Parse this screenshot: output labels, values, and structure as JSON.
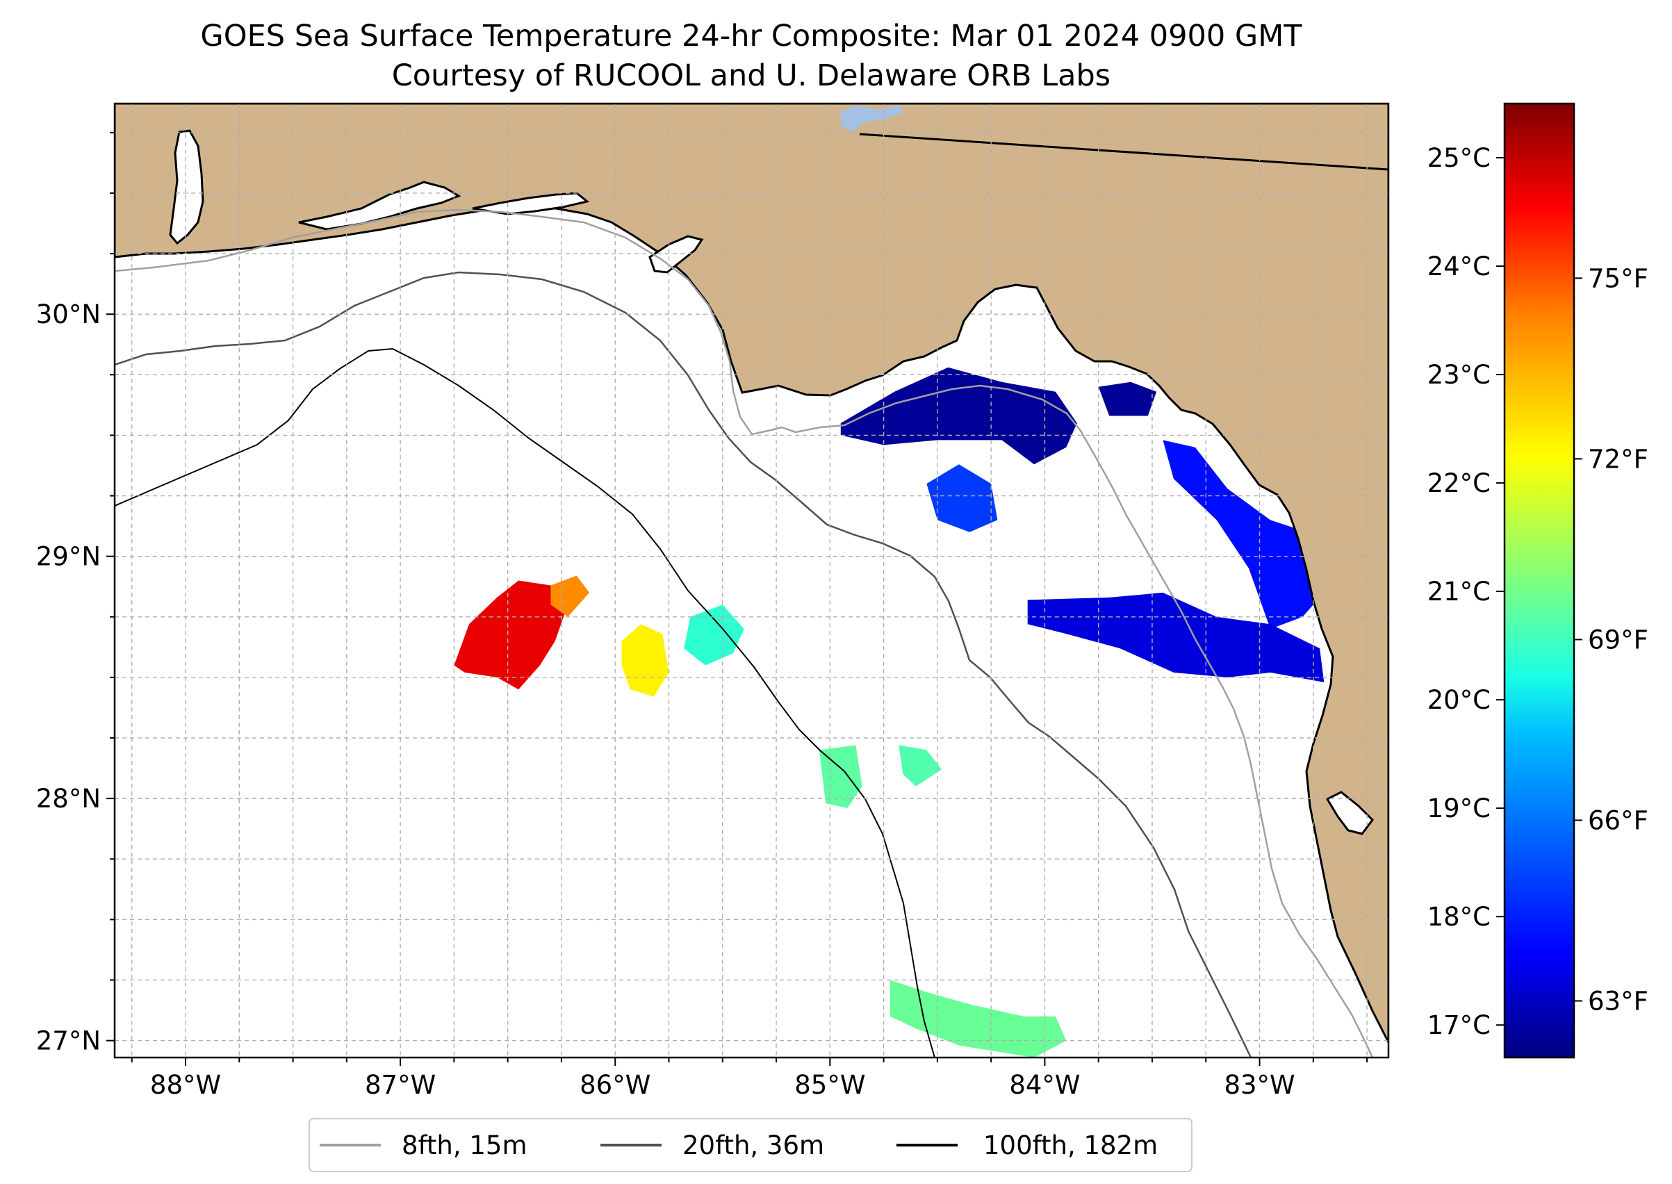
{
  "title": {
    "line1": "GOES Sea Surface Temperature 24-hr Composite: Mar 01 2024 0900 GMT",
    "line2": "Courtesy of RUCOOL and U. Delaware ORB Labs"
  },
  "map": {
    "lon_range": [
      -88.33,
      -82.4
    ],
    "lat_range": [
      26.93,
      30.87
    ],
    "lon_ticks": [
      {
        "value": -88,
        "label": "88°W"
      },
      {
        "value": -87,
        "label": "87°W"
      },
      {
        "value": -86,
        "label": "86°W"
      },
      {
        "value": -85,
        "label": "85°W"
      },
      {
        "value": -84,
        "label": "84°W"
      },
      {
        "value": -83,
        "label": "83°W"
      }
    ],
    "lat_ticks": [
      {
        "value": 27,
        "label": "27°N"
      },
      {
        "value": 28,
        "label": "28°N"
      },
      {
        "value": 29,
        "label": "29°N"
      },
      {
        "value": 30,
        "label": "30°N"
      }
    ],
    "gridlines": true,
    "colors": {
      "land": "#d2b48c",
      "ocean": "#ffffff",
      "lake": "#a4c0e4",
      "grid": "#b0b0b0"
    }
  },
  "colorbar": {
    "colormap": "jet",
    "celsius_range": [
      16.7,
      25.5
    ],
    "celsius_ticks": [
      {
        "value": 17,
        "label": "17°C"
      },
      {
        "value": 18,
        "label": "18°C"
      },
      {
        "value": 19,
        "label": "19°C"
      },
      {
        "value": 20,
        "label": "20°C"
      },
      {
        "value": 21,
        "label": "21°C"
      },
      {
        "value": 22,
        "label": "22°C"
      },
      {
        "value": 23,
        "label": "23°C"
      },
      {
        "value": 24,
        "label": "24°C"
      },
      {
        "value": 25,
        "label": "25°C"
      }
    ],
    "fahrenheit_ticks": [
      {
        "value": 63,
        "label": "63°F"
      },
      {
        "value": 66,
        "label": "66°F"
      },
      {
        "value": 69,
        "label": "69°F"
      },
      {
        "value": 72,
        "label": "72°F"
      },
      {
        "value": 75,
        "label": "75°F"
      }
    ]
  },
  "legend": {
    "placement": "bottom-center",
    "entries": [
      {
        "label": "8fth, 15m",
        "color": "#a0a0a0"
      },
      {
        "label": "20fth, 36m",
        "color": "#505050"
      },
      {
        "label": "100fth, 182m",
        "color": "#000000"
      }
    ]
  },
  "sst_patches": [
    {
      "name": "apalachee-bay-cold",
      "temp_c": 16.9,
      "poly": [
        [
          -84.95,
          29.55
        ],
        [
          -84.7,
          29.68
        ],
        [
          -84.45,
          29.78
        ],
        [
          -84.2,
          29.72
        ],
        [
          -83.95,
          29.68
        ],
        [
          -83.85,
          29.55
        ],
        [
          -83.9,
          29.45
        ],
        [
          -84.05,
          29.38
        ],
        [
          -84.2,
          29.48
        ],
        [
          -84.5,
          29.48
        ],
        [
          -84.75,
          29.46
        ],
        [
          -84.95,
          29.5
        ]
      ]
    },
    {
      "name": "steinhatchee-cold",
      "temp_c": 16.9,
      "poly": [
        [
          -83.75,
          29.7
        ],
        [
          -83.6,
          29.72
        ],
        [
          -83.48,
          29.68
        ],
        [
          -83.52,
          29.58
        ],
        [
          -83.7,
          29.58
        ]
      ]
    },
    {
      "name": "offshore-blue-patch",
      "temp_c": 18.3,
      "poly": [
        [
          -84.55,
          29.3
        ],
        [
          -84.4,
          29.38
        ],
        [
          -84.25,
          29.3
        ],
        [
          -84.22,
          29.15
        ],
        [
          -84.35,
          29.1
        ],
        [
          -84.5,
          29.15
        ]
      ]
    },
    {
      "name": "big-bend-blue-north",
      "temp_c": 17.9,
      "poly": [
        [
          -83.45,
          29.48
        ],
        [
          -83.3,
          29.45
        ],
        [
          -83.15,
          29.28
        ],
        [
          -82.95,
          29.15
        ],
        [
          -82.78,
          29.1
        ],
        [
          -82.7,
          28.85
        ],
        [
          -82.8,
          28.75
        ],
        [
          -82.95,
          28.7
        ],
        [
          -83.05,
          28.95
        ],
        [
          -83.2,
          29.15
        ],
        [
          -83.4,
          29.32
        ]
      ]
    },
    {
      "name": "big-bend-blue-south",
      "temp_c": 17.5,
      "poly": [
        [
          -84.08,
          28.82
        ],
        [
          -83.7,
          28.83
        ],
        [
          -83.45,
          28.85
        ],
        [
          -83.2,
          28.75
        ],
        [
          -82.95,
          28.72
        ],
        [
          -82.72,
          28.62
        ],
        [
          -82.7,
          28.48
        ],
        [
          -82.95,
          28.52
        ],
        [
          -83.15,
          28.5
        ],
        [
          -83.4,
          28.52
        ],
        [
          -83.65,
          28.62
        ],
        [
          -83.9,
          28.68
        ],
        [
          -84.08,
          28.72
        ]
      ]
    },
    {
      "name": "western-warm-patch",
      "temp_c": 24.6,
      "poly": [
        [
          -86.75,
          28.55
        ],
        [
          -86.68,
          28.72
        ],
        [
          -86.55,
          28.83
        ],
        [
          -86.45,
          28.9
        ],
        [
          -86.3,
          28.88
        ],
        [
          -86.22,
          28.8
        ],
        [
          -86.28,
          28.65
        ],
        [
          -86.35,
          28.55
        ],
        [
          -86.45,
          28.45
        ],
        [
          -86.55,
          28.5
        ],
        [
          -86.7,
          28.52
        ]
      ]
    },
    {
      "name": "western-warm-edge",
      "temp_c": 23.2,
      "poly": [
        [
          -86.3,
          28.88
        ],
        [
          -86.18,
          28.92
        ],
        [
          -86.12,
          28.85
        ],
        [
          -86.22,
          28.75
        ],
        [
          -86.3,
          28.8
        ]
      ]
    },
    {
      "name": "central-yellow-patch",
      "temp_c": 22.3,
      "poly": [
        [
          -85.97,
          28.65
        ],
        [
          -85.88,
          28.72
        ],
        [
          -85.78,
          28.68
        ],
        [
          -85.75,
          28.52
        ],
        [
          -85.82,
          28.42
        ],
        [
          -85.93,
          28.45
        ],
        [
          -85.97,
          28.55
        ]
      ]
    },
    {
      "name": "central-cyan-patch",
      "temp_c": 20.4,
      "poly": [
        [
          -85.65,
          28.75
        ],
        [
          -85.5,
          28.8
        ],
        [
          -85.4,
          28.7
        ],
        [
          -85.45,
          28.6
        ],
        [
          -85.58,
          28.55
        ],
        [
          -85.68,
          28.62
        ]
      ]
    },
    {
      "name": "south-green-1",
      "temp_c": 20.8,
      "poly": [
        [
          -85.05,
          28.2
        ],
        [
          -84.88,
          28.22
        ],
        [
          -84.85,
          28.05
        ],
        [
          -84.92,
          27.96
        ],
        [
          -85.02,
          27.98
        ]
      ]
    },
    {
      "name": "south-green-2",
      "temp_c": 20.7,
      "poly": [
        [
          -84.68,
          28.22
        ],
        [
          -84.55,
          28.2
        ],
        [
          -84.48,
          28.12
        ],
        [
          -84.6,
          28.05
        ],
        [
          -84.66,
          28.1
        ]
      ]
    },
    {
      "name": "southern-green-strip",
      "temp_c": 20.9,
      "poly": [
        [
          -84.72,
          27.25
        ],
        [
          -84.55,
          27.2
        ],
        [
          -84.35,
          27.15
        ],
        [
          -84.1,
          27.1
        ],
        [
          -83.95,
          27.1
        ],
        [
          -83.9,
          27.0
        ],
        [
          -84.05,
          26.93
        ],
        [
          -84.4,
          26.98
        ],
        [
          -84.6,
          27.05
        ],
        [
          -84.72,
          27.1
        ]
      ]
    }
  ]
}
